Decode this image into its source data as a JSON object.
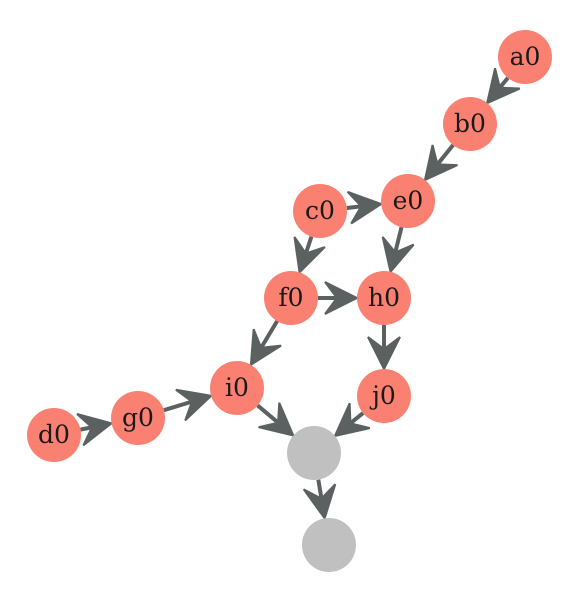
{
  "diagram": {
    "colors": {
      "node_fill": "#fa8072",
      "anon_node_fill": "#c0c0c0",
      "edge": "#5b6161"
    },
    "nodes": [
      {
        "id": "a0",
        "label": "a0",
        "kind": "named"
      },
      {
        "id": "b0",
        "label": "b0",
        "kind": "named"
      },
      {
        "id": "e0",
        "label": "e0",
        "kind": "named"
      },
      {
        "id": "c0",
        "label": "c0",
        "kind": "named"
      },
      {
        "id": "f0",
        "label": "f0",
        "kind": "named"
      },
      {
        "id": "h0",
        "label": "h0",
        "kind": "named"
      },
      {
        "id": "i0",
        "label": "i0",
        "kind": "named"
      },
      {
        "id": "j0",
        "label": "j0",
        "kind": "named"
      },
      {
        "id": "g0",
        "label": "g0",
        "kind": "named"
      },
      {
        "id": "d0",
        "label": "d0",
        "kind": "named"
      },
      {
        "id": "n1",
        "label": "",
        "kind": "anonymous"
      },
      {
        "id": "n2",
        "label": "",
        "kind": "anonymous"
      }
    ],
    "edges": [
      {
        "from": "a0",
        "to": "b0"
      },
      {
        "from": "b0",
        "to": "e0"
      },
      {
        "from": "c0",
        "to": "e0"
      },
      {
        "from": "c0",
        "to": "f0"
      },
      {
        "from": "e0",
        "to": "h0"
      },
      {
        "from": "f0",
        "to": "h0"
      },
      {
        "from": "f0",
        "to": "i0"
      },
      {
        "from": "h0",
        "to": "j0"
      },
      {
        "from": "d0",
        "to": "g0"
      },
      {
        "from": "g0",
        "to": "i0"
      },
      {
        "from": "i0",
        "to": "n1"
      },
      {
        "from": "j0",
        "to": "n1"
      },
      {
        "from": "n1",
        "to": "n2"
      }
    ]
  }
}
